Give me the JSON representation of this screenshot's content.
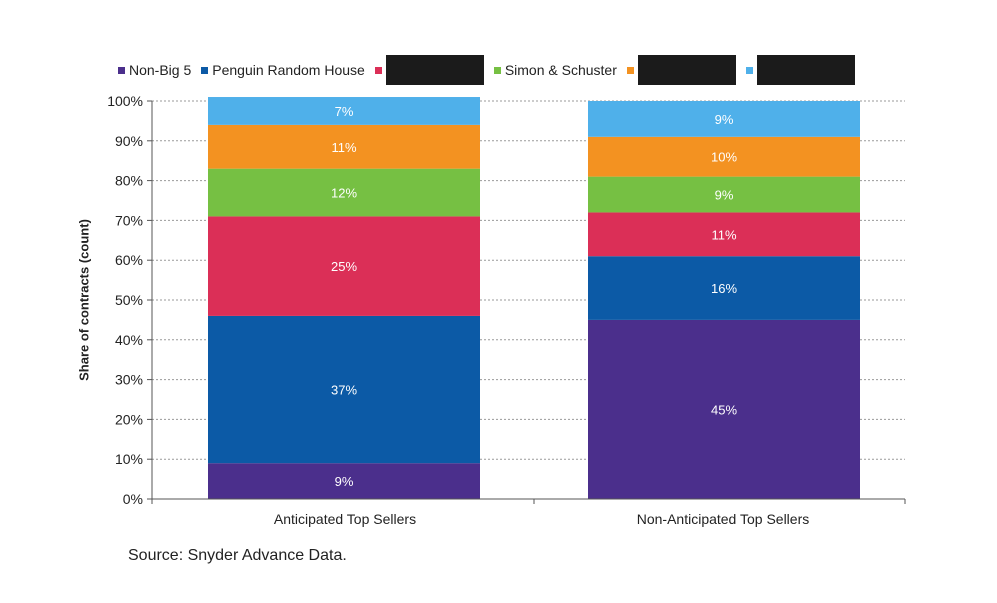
{
  "chart_data": {
    "type": "bar",
    "stacked": true,
    "categories": [
      "Anticipated Top Sellers",
      "Non-Anticipated Top Sellers"
    ],
    "series": [
      {
        "name": "Non-Big 5",
        "color": "#4b2f8c",
        "values": [
          9,
          45
        ],
        "labels": [
          "9%",
          "45%"
        ]
      },
      {
        "name": "Penguin Random House",
        "color": "#0c5aa6",
        "values": [
          37,
          16
        ],
        "labels": [
          "37%",
          "16%"
        ]
      },
      {
        "name": "",
        "color": "#db2f57",
        "values": [
          25,
          11
        ],
        "labels": [
          "25%",
          "11%"
        ]
      },
      {
        "name": "Simon & Schuster",
        "color": "#76c043",
        "values": [
          12,
          9
        ],
        "labels": [
          "12%",
          "9%"
        ]
      },
      {
        "name": "",
        "color": "#f39221",
        "values": [
          11,
          10
        ],
        "labels": [
          "11%",
          "10%"
        ]
      },
      {
        "name": "",
        "color": "#4fb0ea",
        "values": [
          7,
          9
        ],
        "labels": [
          "7%",
          "9%"
        ]
      }
    ],
    "ylabel": "Share of contracts (count)",
    "xlabel": "",
    "ylim": [
      0,
      100
    ],
    "yticks": [
      "0%",
      "10%",
      "20%",
      "30%",
      "40%",
      "50%",
      "60%",
      "70%",
      "80%",
      "90%",
      "100%"
    ],
    "grid": true,
    "legend_position": "top"
  },
  "source": "Source: Snyder Advance Data."
}
